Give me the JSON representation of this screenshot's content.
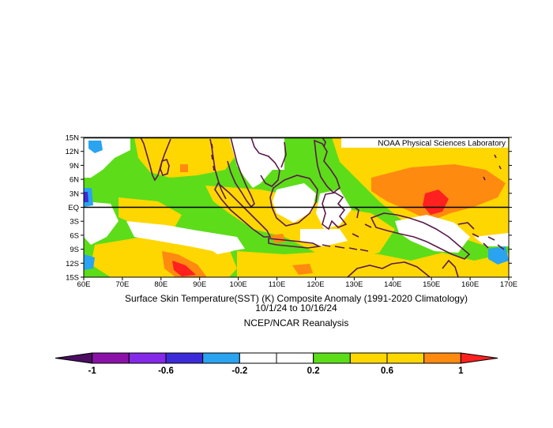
{
  "credit": "NOAA Physical Sciences Laboratory",
  "title_line1": "Surface Skin Temperature(SST) (K) Composite Anomaly (1991-2020 Climatology)",
  "title_line2": "10/1/24  to 10/16/24",
  "source": "NCEP/NCAR Reanalysis",
  "lat_labels": [
    "15N",
    "12N",
    "9N",
    "6N",
    "3N",
    "EQ",
    "3S",
    "6S",
    "9S",
    "12S",
    "15S"
  ],
  "lon_labels": [
    "60E",
    "70E",
    "80E",
    "90E",
    "100E",
    "110E",
    "120E",
    "130E",
    "140E",
    "150E",
    "160E",
    "170E"
  ],
  "colorbar": {
    "colors": [
      "#4b0e63",
      "#8a12a8",
      "#8529e8",
      "#3c2bd8",
      "#2aa3f0",
      "#ffffff",
      "#ffffff",
      "#5ddc1a",
      "#ffd700",
      "#ffd700",
      "#ff8a10",
      "#ff2020"
    ],
    "labels": [
      "-1",
      "-0.6",
      "-0.2",
      "0.2",
      "0.6",
      "1"
    ]
  },
  "legend_colors": {
    "cool_-0.4_-0.2": "#2aa3f0",
    "neutral": "#ffffff",
    "warm_0.2_0.4": "#5ddc1a",
    "warm_0.4_0.8": "#ffd700",
    "warm_0.8_1.0": "#ff8a10",
    "warm_gt_1.0": "#ff2020",
    "land_outline": "#5a1a4a"
  }
}
